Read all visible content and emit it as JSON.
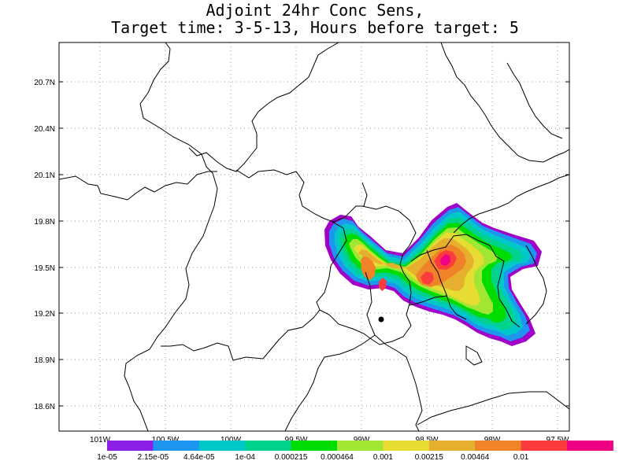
{
  "title": {
    "line1": "Adjoint 24hr Conc Sens,",
    "line2": "Target time: 3-5-13, Hours before target: 5"
  },
  "map": {
    "lat_ticks": [
      "20.7N",
      "20.4N",
      "20.1N",
      "19.8N",
      "19.5N",
      "19.2N",
      "18.9N",
      "18.6N"
    ],
    "lon_ticks": [
      "101W",
      "100.5W",
      "100W",
      "99.5W",
      "99W",
      "98.5W",
      "98W",
      "97.5W"
    ],
    "marker": "target-point"
  },
  "legend": {
    "labels": [
      "1e-05",
      "2.15e-05",
      "4.64e-05",
      "1e-04",
      "0.000215",
      "0.000464",
      "0.001",
      "0.00215",
      "0.00464",
      "0.01"
    ],
    "colors": [
      "#a000c8",
      "#8c1ee6",
      "#1e96f0",
      "#00c8c8",
      "#00d28c",
      "#00dc00",
      "#a0e632",
      "#e6dc32",
      "#e6af2d",
      "#f08228",
      "#fa3c3c",
      "#f00082"
    ]
  }
}
